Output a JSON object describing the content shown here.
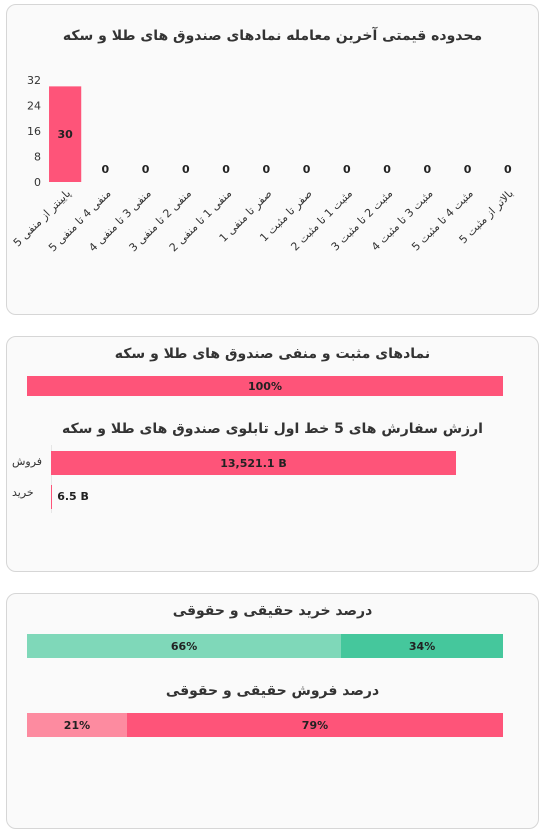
{
  "colors": {
    "pink": "#fe5479",
    "light_pink": "#fd8ba0",
    "green": "#45c79c",
    "light_green": "#7fd8b9",
    "axis_text": "#333333"
  },
  "card1": {
    "title": "محدوده قیمتی آخرین معامله نمادهای صندوق های طلا و سکه"
  },
  "card2": {
    "title1": "نمادهای مثبت و منفی صندوق های طلا و سکه",
    "pos_neg_bar_label": "100%",
    "title2": "ارزش سفارش های 5 خط اول تابلوی صندوق های طلا و سکه",
    "sell_label": "فروش",
    "buy_label": "خرید",
    "sell_value": "13,521.1 B",
    "buy_value": "6.5 B"
  },
  "card3": {
    "buy_title": "درصد خرید حقیقی و حقوقی",
    "sell_title": "درصد فروش حقیقی و حقوقی",
    "buy_left_label": "66%",
    "buy_right_label": "34%",
    "sell_left_label": "21%",
    "sell_right_label": "79%"
  },
  "chart_data": [
    {
      "type": "bar",
      "title": "محدوده قیمتی آخرین معامله نمادهای صندوق های طلا و سکه",
      "categories": [
        "پایینتر از منفی 5",
        "منفی 4 تا منفی 5",
        "منفی 3 تا منفی 4",
        "منفی 2 تا منفی 3",
        "منفی 1 تا منفی 2",
        "صفر تا منفی 1",
        "صفر تا مثبت 1",
        "مثبت 1 تا مثبت 2",
        "مثبت 2 تا مثبت 3",
        "مثبت 3 تا مثبت 4",
        "مثبت 4 تا مثبت 5",
        "بالاتر از مثبت 5"
      ],
      "values": [
        30,
        0,
        0,
        0,
        0,
        0,
        0,
        0,
        0,
        0,
        0,
        0
      ],
      "data_labels": [
        "30",
        "0",
        "0",
        "0",
        "0",
        "0",
        "0",
        "0",
        "0",
        "0",
        "0",
        "0"
      ],
      "yticks": [
        "0",
        "8",
        "16",
        "24",
        "32"
      ],
      "ylim": [
        0,
        32
      ],
      "grid": false
    },
    {
      "type": "bar",
      "orientation": "horizontal-stacked",
      "title": "نمادهای مثبت و منفی صندوق های طلا و سکه",
      "values_percent": [
        100
      ],
      "labels": [
        "100%"
      ]
    },
    {
      "type": "bar",
      "orientation": "horizontal",
      "title": "ارزش سفارش های 5 خط اول تابلوی صندوق های طلا و سکه",
      "categories": [
        "فروش",
        "خرید"
      ],
      "values": [
        13521.1,
        6.5
      ],
      "value_labels": [
        "13,521.1 B",
        "6.5 B"
      ],
      "unit": "B"
    },
    {
      "type": "bar",
      "orientation": "horizontal-stacked",
      "title": "درصد خرید حقیقی و حقوقی",
      "values_percent": [
        66,
        34
      ],
      "labels": [
        "66%",
        "34%"
      ]
    },
    {
      "type": "bar",
      "orientation": "horizontal-stacked",
      "title": "درصد فروش حقیقی و حقوقی",
      "values_percent": [
        21,
        79
      ],
      "labels": [
        "21%",
        "79%"
      ]
    }
  ]
}
